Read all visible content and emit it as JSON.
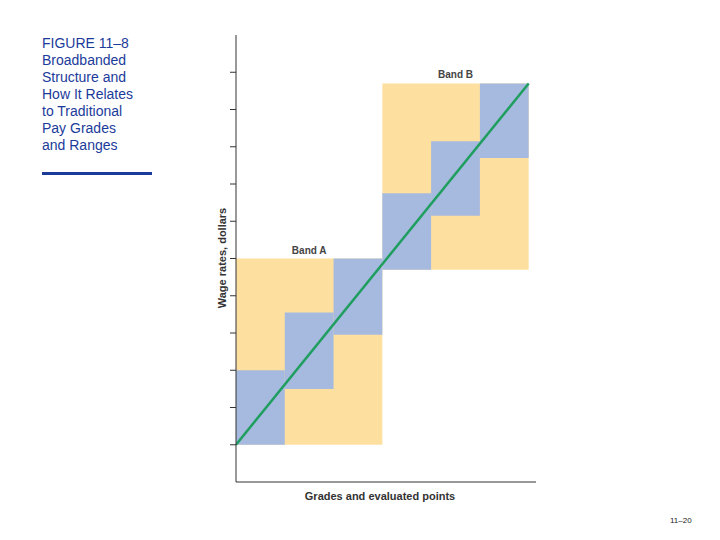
{
  "chart_data": {
    "type": "band",
    "title": "FIGURE 11–8\nBroadbanded\nStructure and\nHow It Relates\nto Traditional\nPay Grades\nand Ranges",
    "x_label": "Grades and evaluated points",
    "y_label": "Wage rates, dollars",
    "xlim": [
      0,
      6.15
    ],
    "ylim": [
      0,
      12
    ],
    "yticks": [
      1,
      2,
      3,
      4,
      5,
      6,
      7,
      8,
      9,
      10,
      11
    ],
    "tick_labels": false,
    "bands": [
      {
        "name": "Band A",
        "color": "#fde0a0",
        "x": [
          0,
          3
        ],
        "y": [
          1,
          6
        ],
        "grades": [
          {
            "x": [
              0,
              1
            ],
            "y": [
              1,
              3
            ]
          },
          {
            "x": [
              1,
              2
            ],
            "y": [
              2.5,
              4.55
            ]
          },
          {
            "x": [
              2,
              3
            ],
            "y": [
              3.95,
              6
            ]
          }
        ]
      },
      {
        "name": "Band B",
        "color": "#fde0a0",
        "x": [
          3,
          6
        ],
        "y": [
          5.7,
          10.7
        ],
        "grades": [
          {
            "x": [
              3,
              4
            ],
            "y": [
              5.7,
              7.75
            ]
          },
          {
            "x": [
              4,
              5
            ],
            "y": [
              7.15,
              9.15
            ]
          },
          {
            "x": [
              5,
              6
            ],
            "y": [
              8.7,
              10.7
            ]
          }
        ]
      }
    ],
    "grade_color": "#a6badf",
    "line": {
      "color": "#1f9e5f",
      "x": [
        0,
        6
      ],
      "y": [
        1,
        10.7
      ]
    },
    "page_number": "11–20"
  }
}
